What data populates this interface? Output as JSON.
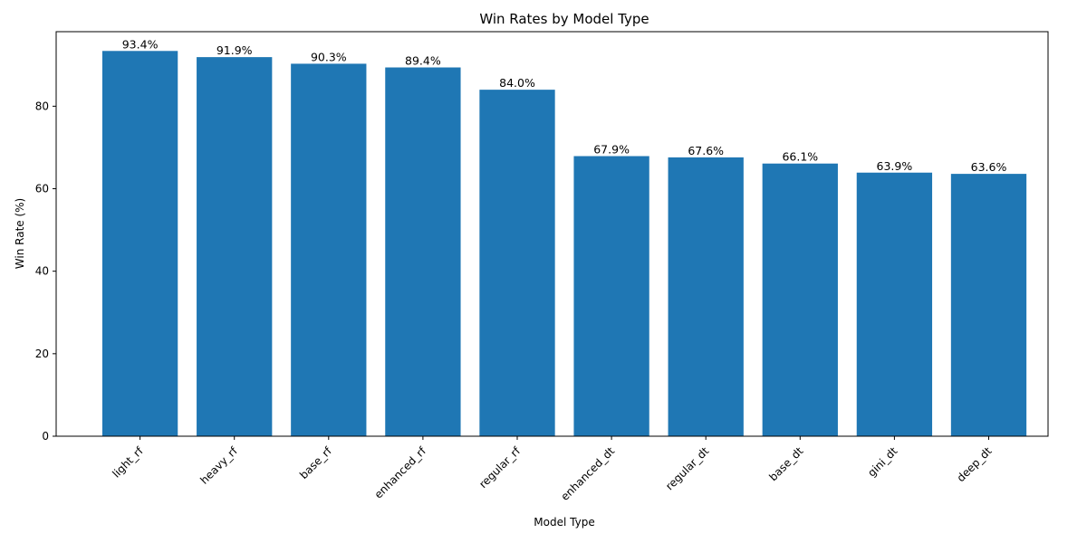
{
  "chart_data": {
    "type": "bar",
    "title": "Win Rates by Model Type",
    "xlabel": "Model Type",
    "ylabel": "Win Rate (%)",
    "categories": [
      "light_rf",
      "heavy_rf",
      "base_rf",
      "enhanced_rf",
      "regular_rf",
      "enhanced_dt",
      "regular_dt",
      "base_dt",
      "gini_dt",
      "deep_dt"
    ],
    "values": [
      93.4,
      91.9,
      90.3,
      89.4,
      84.0,
      67.9,
      67.6,
      66.1,
      63.9,
      63.6
    ],
    "value_labels": [
      "93.4%",
      "91.9%",
      "90.3%",
      "89.4%",
      "84.0%",
      "67.9%",
      "67.6%",
      "66.1%",
      "63.9%",
      "63.6%"
    ],
    "yticks": [
      0,
      20,
      40,
      60,
      80
    ],
    "ylim": [
      0,
      98.07
    ],
    "bar_color": "#1f77b4",
    "grid": false,
    "legend": "none"
  }
}
